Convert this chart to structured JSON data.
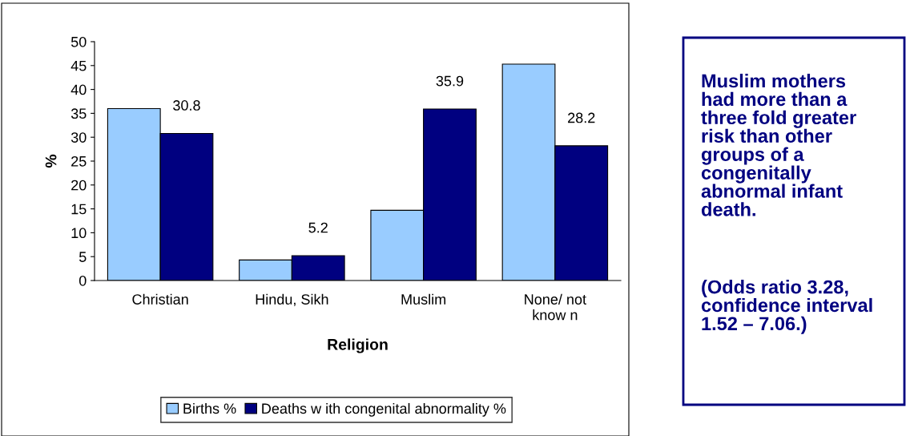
{
  "chart_data": {
    "type": "bar",
    "xlabel": "Religion",
    "ylabel": "%",
    "categories": [
      "Christian",
      "Hindu, Sikh",
      "Muslim",
      "None/ not\nknow n"
    ],
    "series": [
      {
        "name": "Births %",
        "color": "#99ccff",
        "values": [
          36,
          4.3,
          14.7,
          45.3
        ]
      },
      {
        "name": "Deaths w ith congenital abnormality %",
        "color": "#000080",
        "values": [
          30.8,
          5.2,
          35.9,
          28.2
        ],
        "value_labels": [
          "30.8",
          "5.2",
          "35.9",
          "28.2"
        ]
      }
    ],
    "ylim": [
      0,
      50
    ],
    "yticks": [
      0,
      5,
      10,
      15,
      20,
      25,
      30,
      35,
      40,
      45,
      50
    ],
    "grid": false,
    "legend": "bottom",
    "annotations": [
      "Muslim mothers\nhad more than a\nthree fold greater\nrisk than other\ngroups of a\ncongenitally\nabnormal infant\ndeath.",
      "(Odds ratio 3.28,\nconfidence interval\n1.52 – 7.06.)"
    ]
  }
}
